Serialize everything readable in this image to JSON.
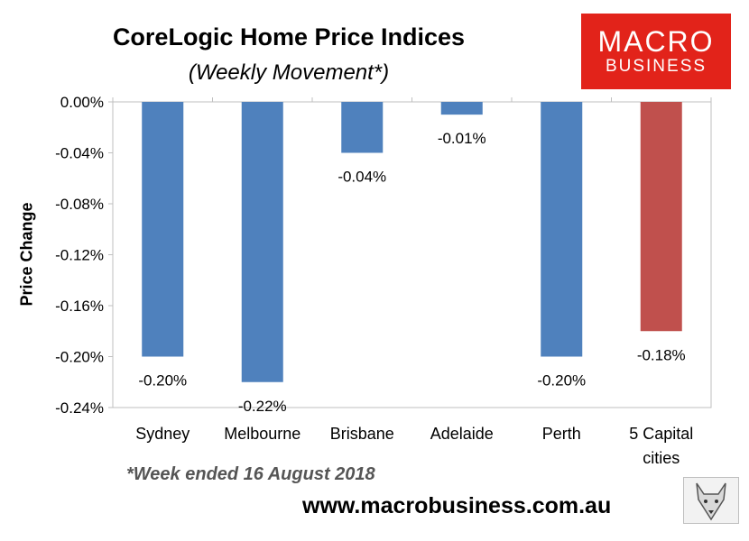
{
  "header": {
    "title": "CoreLogic Home Price Indices",
    "subtitle": "(Weekly Movement*)"
  },
  "logo": {
    "line1": "MACRO",
    "line2": "BUSINESS"
  },
  "footer": {
    "footnote": "*Week ended 16 August 2018",
    "website": "www.macrobusiness.com.au"
  },
  "colors": {
    "bar": "#4f81bd",
    "highlight": "#c0504d",
    "brand": "#e2231a"
  },
  "chart_data": {
    "type": "bar",
    "categories": [
      "Sydney",
      "Melbourne",
      "Brisbane",
      "Adelaide",
      "Perth",
      "5 Capital cities"
    ],
    "category_label_lines": [
      [
        "Sydney"
      ],
      [
        "Melbourne"
      ],
      [
        "Brisbane"
      ],
      [
        "Adelaide"
      ],
      [
        "Perth"
      ],
      [
        "5 Capital",
        "cities"
      ]
    ],
    "values": [
      -0.2,
      -0.22,
      -0.04,
      -0.01,
      -0.2,
      -0.18
    ],
    "value_labels": [
      "-0.20%",
      "-0.22%",
      "-0.04%",
      "-0.01%",
      "-0.20%",
      "-0.18%"
    ],
    "bar_colors": [
      "#4f81bd",
      "#4f81bd",
      "#4f81bd",
      "#4f81bd",
      "#4f81bd",
      "#c0504d"
    ],
    "ylabel": "Price Change",
    "ylim": [
      -0.24,
      0
    ],
    "yticks": [
      0,
      -0.04,
      -0.08,
      -0.12,
      -0.16,
      -0.2,
      -0.24
    ],
    "ytick_labels": [
      "0.00%",
      "-0.04%",
      "-0.08%",
      "-0.12%",
      "-0.16%",
      "-0.20%",
      "-0.24%"
    ],
    "grid": false,
    "legend": "none"
  }
}
